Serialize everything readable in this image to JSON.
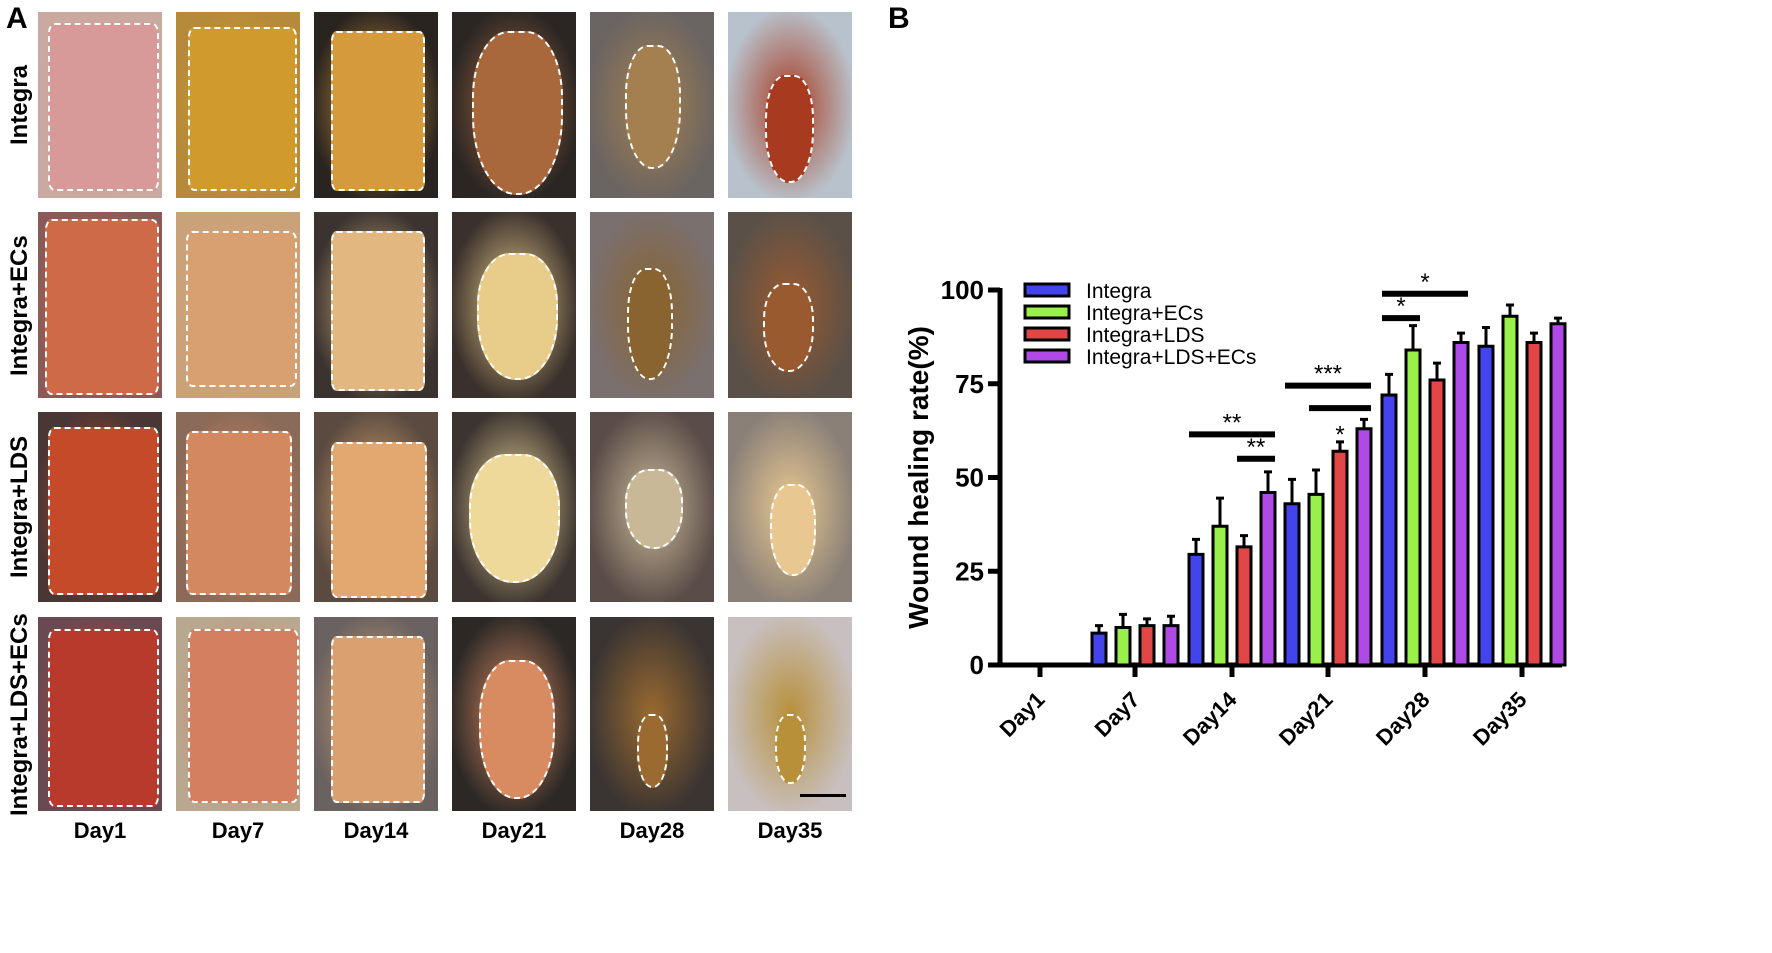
{
  "figure": {
    "panel_a": {
      "letter": "A",
      "rows": [
        {
          "label": "Integra"
        },
        {
          "label": "Integra+ECs"
        },
        {
          "label": "Integra+LDS"
        },
        {
          "label": "Integra+LDS+ECs"
        }
      ],
      "columns": [
        "Day1",
        "Day7",
        "Day14",
        "Day21",
        "Day28",
        "Day35"
      ]
    },
    "panel_b": {
      "letter": "B"
    }
  },
  "chart_data": {
    "type": "bar",
    "title": "",
    "xlabel": "",
    "ylabel": "Wound healing rate(%)",
    "ylim": [
      0,
      100
    ],
    "yticks": [
      0,
      25,
      50,
      75,
      100
    ],
    "grid": false,
    "legend_position": "top-left inside",
    "categories": [
      "Day1",
      "Day7",
      "Day14",
      "Day21",
      "Day28",
      "Day35"
    ],
    "series": [
      {
        "name": "Integra",
        "color": "#4444ee",
        "values": [
          0,
          8.5,
          29.5,
          43,
          72,
          85
        ],
        "errors": [
          0,
          2,
          4,
          6.5,
          5.5,
          5
        ]
      },
      {
        "name": "Integra+ECs",
        "color": "#99f04a",
        "values": [
          0,
          10,
          37,
          45.5,
          84,
          93
        ],
        "errors": [
          0,
          3.5,
          7.5,
          6.5,
          6.5,
          3
        ]
      },
      {
        "name": "Integra+LDS",
        "color": "#e24646",
        "values": [
          0,
          10.5,
          31.5,
          57,
          76,
          86
        ],
        "errors": [
          0,
          1.8,
          3,
          2.5,
          4.5,
          2.5
        ]
      },
      {
        "name": "Integra+LDS+ECs",
        "color": "#b04ae6",
        "values": [
          0,
          10.5,
          46,
          63,
          86,
          91
        ],
        "errors": [
          0,
          2.5,
          5.5,
          2.5,
          2.5,
          1.5
        ]
      }
    ],
    "annotations": [
      {
        "category": "Day14",
        "from_series": 0,
        "to_series": 3,
        "label": "**",
        "y": 61.5
      },
      {
        "category": "Day14",
        "from_series": 2,
        "to_series": 3,
        "label": "**",
        "y": 55
      },
      {
        "category": "Day21",
        "from_series": 0,
        "to_series": 3,
        "label": "***",
        "y": 74.5
      },
      {
        "category": "Day21",
        "from_series": 1,
        "to_series": 3,
        "label": "",
        "y": 68.5
      },
      {
        "category": "Day21",
        "series_only": 2,
        "label": "*",
        "y": 61
      },
      {
        "category": "Day28",
        "from_series": 0,
        "to_series": 1,
        "label": "*",
        "y": 92.5
      },
      {
        "category": "Day28",
        "from_series": 0,
        "to_series": 3,
        "label": "*",
        "y": 99
      }
    ]
  }
}
